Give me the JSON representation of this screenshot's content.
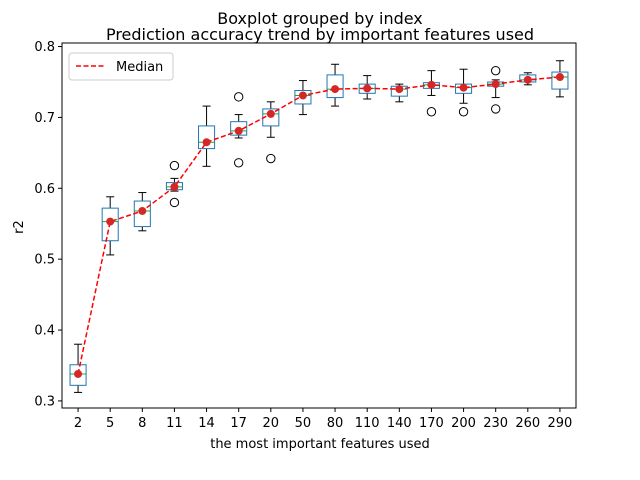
{
  "chart_data": {
    "type": "boxplot",
    "title": "Boxplot grouped by index",
    "subtitle": "Prediction accuracy trend by important features used",
    "xlabel": "the most important features used",
    "ylabel": "r2",
    "ylim": [
      0.29,
      0.805
    ],
    "yticks": [
      "0.3",
      "0.4",
      "0.5",
      "0.6",
      "0.7",
      "0.8"
    ],
    "categories": [
      "2",
      "5",
      "8",
      "11",
      "14",
      "17",
      "20",
      "50",
      "80",
      "110",
      "140",
      "170",
      "200",
      "230",
      "260",
      "290"
    ],
    "boxes": [
      {
        "whislo": 0.312,
        "q1": 0.322,
        "med": 0.338,
        "q3": 0.351,
        "whishi": 0.38,
        "fliers": []
      },
      {
        "whislo": 0.506,
        "q1": 0.526,
        "med": 0.553,
        "q3": 0.572,
        "whishi": 0.588,
        "fliers": []
      },
      {
        "whislo": 0.54,
        "q1": 0.546,
        "med": 0.568,
        "q3": 0.582,
        "whishi": 0.594,
        "fliers": []
      },
      {
        "whislo": 0.596,
        "q1": 0.598,
        "med": 0.602,
        "q3": 0.608,
        "whishi": 0.614,
        "fliers": [
          0.632,
          0.58
        ]
      },
      {
        "whislo": 0.631,
        "q1": 0.656,
        "med": 0.665,
        "q3": 0.688,
        "whishi": 0.716,
        "fliers": []
      },
      {
        "whislo": 0.671,
        "q1": 0.675,
        "med": 0.681,
        "q3": 0.694,
        "whishi": 0.704,
        "fliers": [
          0.729,
          0.636
        ]
      },
      {
        "whislo": 0.672,
        "q1": 0.688,
        "med": 0.705,
        "q3": 0.712,
        "whishi": 0.722,
        "fliers": [
          0.642
        ]
      },
      {
        "whislo": 0.704,
        "q1": 0.719,
        "med": 0.731,
        "q3": 0.738,
        "whishi": 0.752,
        "fliers": []
      },
      {
        "whislo": 0.716,
        "q1": 0.728,
        "med": 0.74,
        "q3": 0.76,
        "whishi": 0.775,
        "fliers": []
      },
      {
        "whislo": 0.726,
        "q1": 0.734,
        "med": 0.741,
        "q3": 0.747,
        "whishi": 0.759,
        "fliers": []
      },
      {
        "whislo": 0.722,
        "q1": 0.73,
        "med": 0.74,
        "q3": 0.744,
        "whishi": 0.747,
        "fliers": []
      },
      {
        "whislo": 0.731,
        "q1": 0.741,
        "med": 0.746,
        "q3": 0.749,
        "whishi": 0.766,
        "fliers": [
          0.708
        ]
      },
      {
        "whislo": 0.72,
        "q1": 0.734,
        "med": 0.742,
        "q3": 0.747,
        "whishi": 0.768,
        "fliers": [
          0.708
        ]
      },
      {
        "whislo": 0.728,
        "q1": 0.744,
        "med": 0.747,
        "q3": 0.75,
        "whishi": 0.753,
        "fliers": [
          0.766,
          0.712
        ]
      },
      {
        "whislo": 0.746,
        "q1": 0.75,
        "med": 0.753,
        "q3": 0.76,
        "whishi": 0.763,
        "fliers": []
      },
      {
        "whislo": 0.729,
        "q1": 0.74,
        "med": 0.757,
        "q3": 0.764,
        "whishi": 0.78,
        "fliers": []
      }
    ],
    "median_line": {
      "name": "Median",
      "values": [
        0.338,
        0.553,
        0.568,
        0.602,
        0.665,
        0.681,
        0.705,
        0.731,
        0.74,
        0.741,
        0.74,
        0.746,
        0.742,
        0.747,
        0.753,
        0.757
      ]
    },
    "legend_position": "top-left",
    "grid": false,
    "colors": {
      "box": "#1f77b4",
      "median_tick": "#2ca02c",
      "median_line": "#ff0000",
      "median_marker": "#d62728",
      "whisker": "#000000",
      "flier": "#000000"
    }
  }
}
